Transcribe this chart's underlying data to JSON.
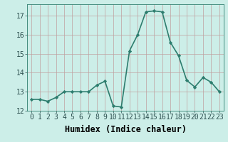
{
  "x": [
    0,
    1,
    2,
    3,
    4,
    5,
    6,
    7,
    8,
    9,
    10,
    11,
    12,
    13,
    14,
    15,
    16,
    17,
    18,
    19,
    20,
    21,
    22,
    23
  ],
  "y": [
    12.6,
    12.6,
    12.5,
    12.7,
    13.0,
    13.0,
    13.0,
    13.0,
    13.35,
    13.55,
    12.25,
    12.2,
    15.15,
    16.0,
    17.2,
    17.25,
    17.2,
    15.6,
    14.9,
    13.6,
    13.25,
    13.75,
    13.5,
    13.0
  ],
  "line_color": "#2d7d6e",
  "marker": "D",
  "marker_size": 2.2,
  "bg_color": "#cceee8",
  "grid_color_minor": "#d4b8b8",
  "grid_color_major": "#c0a0a0",
  "xlabel": "Humidex (Indice chaleur)",
  "ylim": [
    12,
    17.6
  ],
  "xlim": [
    -0.5,
    23.5
  ],
  "yticks": [
    12,
    13,
    14,
    15,
    16,
    17
  ],
  "xticks": [
    0,
    1,
    2,
    3,
    4,
    5,
    6,
    7,
    8,
    9,
    10,
    11,
    12,
    13,
    14,
    15,
    16,
    17,
    18,
    19,
    20,
    21,
    22,
    23
  ],
  "xtick_labels": [
    "0",
    "1",
    "2",
    "3",
    "4",
    "5",
    "6",
    "7",
    "8",
    "9",
    "10",
    "11",
    "12",
    "13",
    "14",
    "15",
    "16",
    "17",
    "18",
    "19",
    "20",
    "21",
    "22",
    "23"
  ],
  "tick_fontsize": 7,
  "xlabel_fontsize": 8.5,
  "linewidth": 1.2
}
